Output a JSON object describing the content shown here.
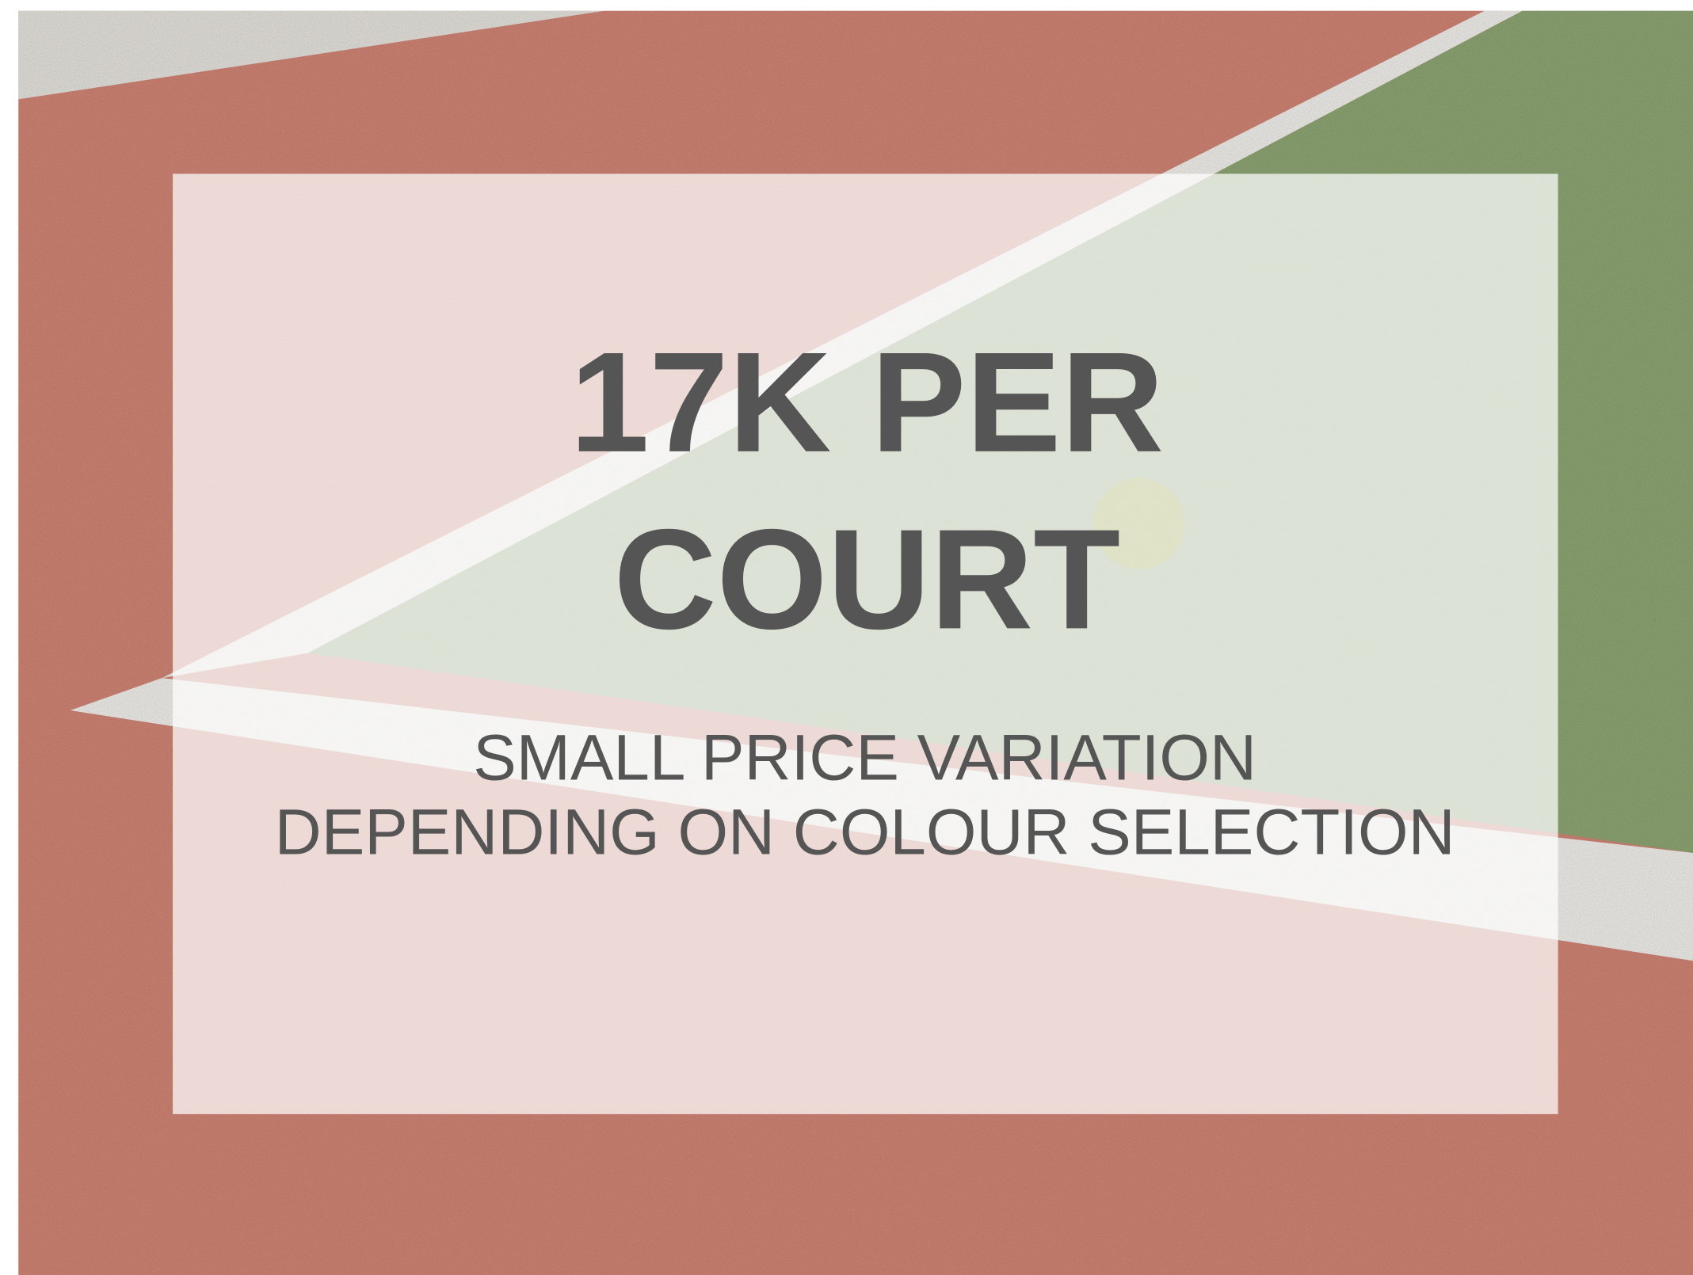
{
  "title": {
    "lines": [
      "17K PER",
      "COURT"
    ]
  },
  "subtitle": {
    "lines": [
      "SMALL PRICE VARIATION",
      "DEPENDING ON COLOUR SELECTION"
    ]
  }
}
